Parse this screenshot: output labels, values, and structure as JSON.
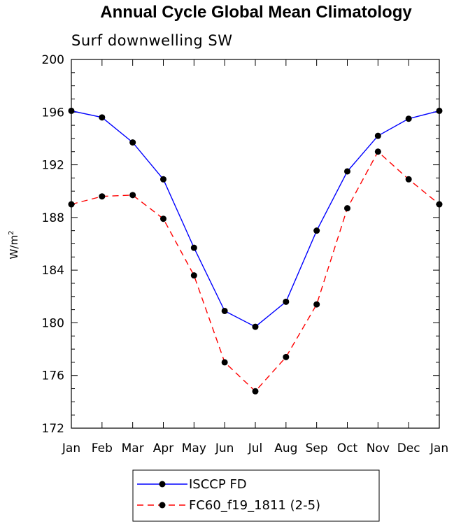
{
  "chart_data": {
    "type": "line",
    "title": "Annual Cycle Global Mean Climatology",
    "subtitle": "Surf downwelling SW",
    "ylabel_main": "W/m",
    "ylabel_sup": "2",
    "categories": [
      "Jan",
      "Feb",
      "Mar",
      "Apr",
      "May",
      "Jun",
      "Jul",
      "Aug",
      "Sep",
      "Oct",
      "Nov",
      "Dec",
      "Jan"
    ],
    "ylim": [
      172,
      200
    ],
    "yticks": [
      172,
      176,
      180,
      184,
      188,
      192,
      196,
      200
    ],
    "ytick_labels": [
      "172",
      "176",
      "180",
      "184",
      "188",
      "192",
      "196",
      "200"
    ],
    "series": [
      {
        "name": "ISCCP FD",
        "color": "#0000ff",
        "dashed": false,
        "values": [
          196.1,
          195.6,
          193.7,
          190.9,
          185.7,
          180.9,
          179.7,
          181.6,
          187.0,
          191.5,
          194.2,
          195.5,
          196.1
        ]
      },
      {
        "name": "FC60_f19_1811 (2-5)",
        "color": "#ff0000",
        "dashed": true,
        "values": [
          189.0,
          189.6,
          189.7,
          187.9,
          183.6,
          177.0,
          174.8,
          177.4,
          181.4,
          188.7,
          193.0,
          190.9,
          189.0
        ]
      }
    ],
    "grid": false,
    "legend_position": "bottom"
  }
}
